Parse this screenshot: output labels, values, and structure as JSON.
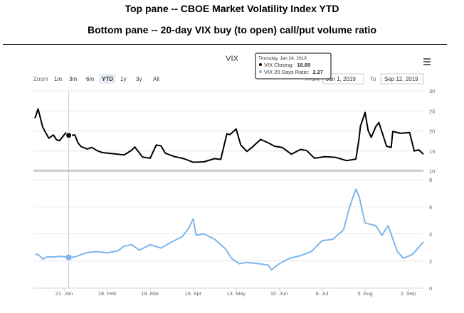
{
  "header": {
    "title_top": "Top pane -- CBOE Market Volatility Index YTD",
    "title_bottom": "Bottom pane -- 20-day VIX buy (to open) call/put volume ratio"
  },
  "chart_title": "VIX",
  "menu_icon": "hamburger-menu-icon",
  "zoom": {
    "label": "Zoom",
    "options": [
      "1m",
      "3m",
      "6m",
      "YTD",
      "1y",
      "3y",
      "All"
    ],
    "selected": "YTD"
  },
  "range": {
    "from_label": "From",
    "from_value": "Jan 1, 2019",
    "to_label": "To",
    "to_value": "Sep 12, 2019"
  },
  "tooltip": {
    "date": "Thursday, Jan 24, 2019",
    "line1_label": "VIX Closing:",
    "line1_value": "18.89",
    "line2_label": "VIX 20 Days Ratio:",
    "line2_value": "2.27"
  },
  "colors": {
    "vix": "#000000",
    "ratio": "#7cb5ec",
    "grid": "#e6e6e6",
    "separator": "#cccccc",
    "crosshair": "#cccccc"
  },
  "chart_data": [
    {
      "type": "line",
      "name": "VIX Closing",
      "ylim": [
        10,
        30
      ],
      "yticks": [
        10,
        15,
        20,
        25,
        30
      ],
      "x": [
        "2019-01-02",
        "2019-01-04",
        "2019-01-07",
        "2019-01-09",
        "2019-01-11",
        "2019-01-14",
        "2019-01-16",
        "2019-01-18",
        "2019-01-22",
        "2019-01-24",
        "2019-01-28",
        "2019-01-30",
        "2019-02-01",
        "2019-02-05",
        "2019-02-08",
        "2019-02-12",
        "2019-02-15",
        "2019-02-20",
        "2019-02-25",
        "2019-03-01",
        "2019-03-06",
        "2019-03-08",
        "2019-03-13",
        "2019-03-18",
        "2019-03-22",
        "2019-03-25",
        "2019-03-28",
        "2019-04-03",
        "2019-04-09",
        "2019-04-15",
        "2019-04-22",
        "2019-04-29",
        "2019-05-03",
        "2019-05-07",
        "2019-05-09",
        "2019-05-13",
        "2019-05-16",
        "2019-05-20",
        "2019-05-23",
        "2019-05-29",
        "2019-06-03",
        "2019-06-07",
        "2019-06-12",
        "2019-06-18",
        "2019-06-24",
        "2019-06-28",
        "2019-07-03",
        "2019-07-10",
        "2019-07-17",
        "2019-07-24",
        "2019-07-30",
        "2019-08-01",
        "2019-08-02",
        "2019-08-05",
        "2019-08-07",
        "2019-08-09",
        "2019-08-12",
        "2019-08-14",
        "2019-08-19",
        "2019-08-22",
        "2019-08-23",
        "2019-08-28",
        "2019-09-03",
        "2019-09-06",
        "2019-09-09",
        "2019-09-12"
      ],
      "values": [
        23.2,
        25.5,
        21.0,
        19.5,
        18.2,
        19.0,
        17.8,
        17.6,
        19.5,
        18.89,
        19.0,
        17.0,
        16.1,
        15.5,
        15.9,
        15.0,
        14.6,
        14.4,
        14.2,
        14.0,
        15.2,
        16.0,
        13.5,
        13.2,
        16.5,
        16.3,
        14.4,
        13.6,
        13.1,
        12.2,
        12.3,
        13.1,
        12.9,
        19.3,
        19.1,
        20.5,
        16.5,
        14.9,
        15.8,
        17.9,
        17.0,
        16.2,
        15.9,
        14.2,
        15.4,
        15.1,
        13.2,
        13.6,
        13.4,
        12.6,
        13.0,
        17.9,
        21.2,
        24.6,
        20.1,
        18.4,
        21.1,
        22.1,
        16.2,
        15.9,
        19.9,
        19.4,
        19.6,
        15.0,
        15.3,
        14.2
      ]
    },
    {
      "type": "line",
      "name": "VIX 20 Days Ratio",
      "ylim": [
        0,
        8
      ],
      "yticks": [
        0,
        2,
        4,
        6,
        8
      ],
      "x": [
        "2019-01-02",
        "2019-01-04",
        "2019-01-07",
        "2019-01-10",
        "2019-01-14",
        "2019-01-18",
        "2019-01-24",
        "2019-01-28",
        "2019-02-04",
        "2019-02-11",
        "2019-02-18",
        "2019-02-25",
        "2019-03-01",
        "2019-03-06",
        "2019-03-11",
        "2019-03-18",
        "2019-03-25",
        "2019-04-01",
        "2019-04-08",
        "2019-04-12",
        "2019-04-15",
        "2019-04-17",
        "2019-04-22",
        "2019-04-29",
        "2019-05-06",
        "2019-05-10",
        "2019-05-15",
        "2019-05-20",
        "2019-05-28",
        "2019-06-03",
        "2019-06-05",
        "2019-06-10",
        "2019-06-17",
        "2019-06-24",
        "2019-07-01",
        "2019-07-08",
        "2019-07-15",
        "2019-07-22",
        "2019-07-26",
        "2019-07-30",
        "2019-08-01",
        "2019-08-05",
        "2019-08-12",
        "2019-08-16",
        "2019-08-20",
        "2019-08-26",
        "2019-08-30",
        "2019-09-05",
        "2019-09-12"
      ],
      "values": [
        2.45,
        2.5,
        2.15,
        2.3,
        2.3,
        2.35,
        2.27,
        2.3,
        2.6,
        2.7,
        2.6,
        2.75,
        3.1,
        3.2,
        2.8,
        3.2,
        2.95,
        3.4,
        3.8,
        4.4,
        5.1,
        3.9,
        4.0,
        3.6,
        2.9,
        2.2,
        1.8,
        1.9,
        1.8,
        1.7,
        1.35,
        1.8,
        2.2,
        2.4,
        2.7,
        3.5,
        3.6,
        4.3,
        6.0,
        7.3,
        6.8,
        4.8,
        4.6,
        3.9,
        4.6,
        2.7,
        2.2,
        2.5,
        3.4
      ]
    }
  ],
  "x_axis": {
    "ticks": [
      {
        "date": "2019-01-21",
        "label": "21. Jan"
      },
      {
        "date": "2019-02-18",
        "label": "18. Feb"
      },
      {
        "date": "2019-03-18",
        "label": "18. Mar"
      },
      {
        "date": "2019-04-15",
        "label": "15. Apr"
      },
      {
        "date": "2019-05-13",
        "label": "13. May"
      },
      {
        "date": "2019-06-10",
        "label": "10. Jun"
      },
      {
        "date": "2019-07-08",
        "label": "8. Jul"
      },
      {
        "date": "2019-08-05",
        "label": "5. Aug"
      },
      {
        "date": "2019-09-02",
        "label": "2. Sep"
      }
    ]
  },
  "crosshair_date": "2019-01-24"
}
